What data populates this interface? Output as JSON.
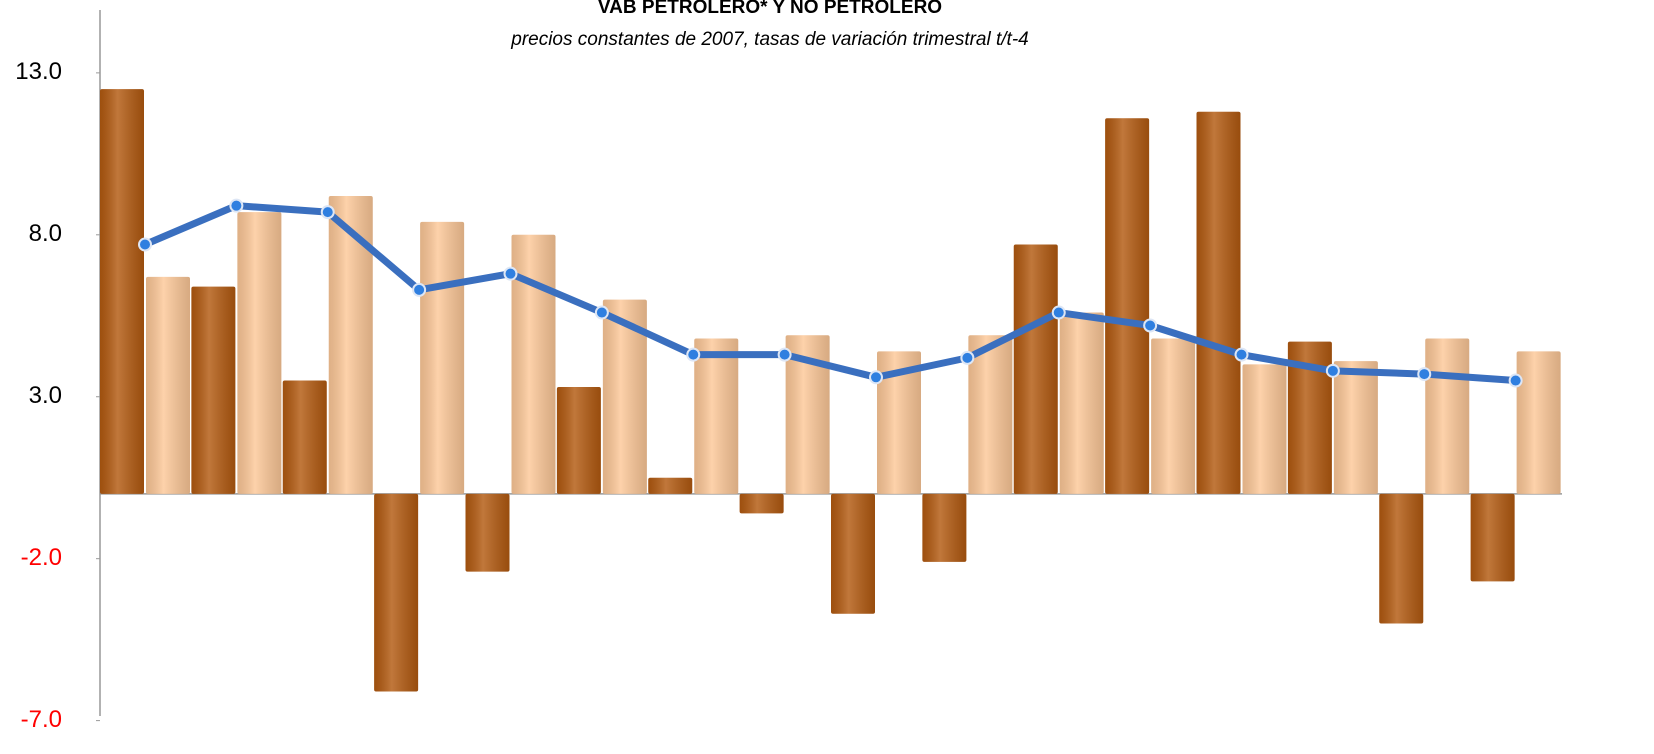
{
  "chart_data": {
    "type": "bar",
    "title": "VAB PETROLERO* Y NO PETROLERO",
    "subtitle": "precios constantes de 2007, tasas de variación trimestral t/t-4",
    "ylim": [
      -8,
      15.25
    ],
    "yticks": [
      {
        "value": 13,
        "label": "13.0"
      },
      {
        "value": 8,
        "label": "8.0"
      },
      {
        "value": 3,
        "label": "3.0"
      },
      {
        "value": -2,
        "label": "-2.0"
      },
      {
        "value": -7,
        "label": "-7.0"
      }
    ],
    "tick_color": "#000000",
    "negative_tick_color": "#ff0000",
    "series": [
      {
        "type": "bar",
        "color": "#b35a10",
        "values": [
          12.5,
          6.4,
          3.5,
          -6.1,
          -2.4,
          3.3,
          0.5,
          -0.6,
          -3.7,
          -2.1,
          7.7,
          11.6,
          11.8,
          4.7,
          -4.0,
          -2.7
        ]
      },
      {
        "type": "bar",
        "color": "#fdc898",
        "values": [
          6.7,
          8.7,
          9.2,
          8.4,
          8.0,
          6.0,
          4.8,
          4.9,
          4.4,
          4.9,
          5.6,
          4.8,
          4.0,
          4.1,
          4.8,
          4.4
        ]
      },
      {
        "type": "line",
        "color": "#3a6fbf",
        "values": [
          7.7,
          8.9,
          8.7,
          6.3,
          6.8,
          5.6,
          4.3,
          4.3,
          3.6,
          4.2,
          5.6,
          5.2,
          4.3,
          3.8,
          3.7,
          3.5
        ]
      }
    ]
  }
}
